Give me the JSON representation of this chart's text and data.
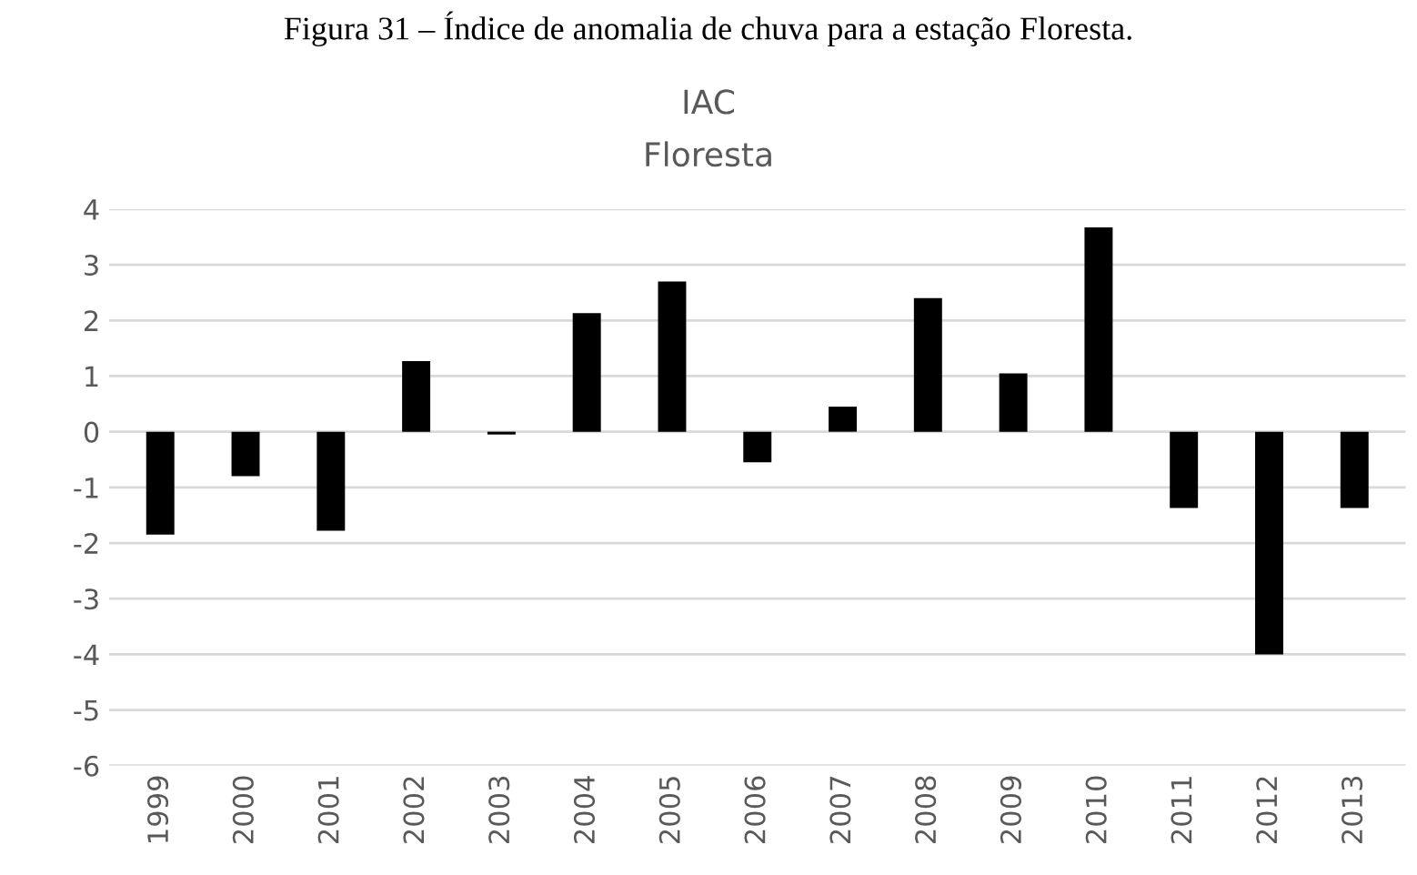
{
  "chart_data": {
    "type": "bar",
    "title": "IAC",
    "subtitle": "Floresta",
    "annotations": [
      "Figura 31 – Índice de anomalia de chuva para a estação Floresta."
    ],
    "categories": [
      "1999",
      "2000",
      "2001",
      "2002",
      "2003",
      "2004",
      "2005",
      "2006",
      "2007",
      "2008",
      "2009",
      "2010",
      "2011",
      "2012",
      "2013"
    ],
    "values": [
      -1.85,
      -0.8,
      -1.78,
      1.27,
      -0.05,
      2.13,
      2.7,
      -0.55,
      0.45,
      2.4,
      1.05,
      3.67,
      -1.37,
      -4.0,
      -1.37
    ],
    "color": "#000000",
    "ylim": [
      -6,
      4
    ],
    "yticks": [
      -6,
      -5,
      -4,
      -3,
      -2,
      -1,
      0,
      1,
      2,
      3,
      4
    ],
    "grid": "y"
  }
}
